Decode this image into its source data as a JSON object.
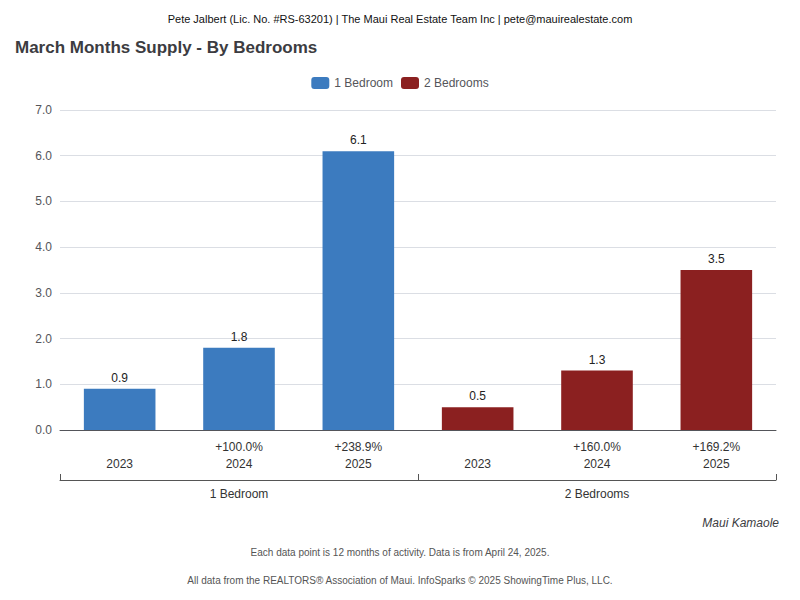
{
  "chart_data": {
    "type": "bar",
    "header": "Pete Jalbert (Lic. No. #RS-63201) | The Maui Real Estate Team Inc | pete@mauirealestate.com",
    "title": "March Months Supply - By Bedrooms",
    "categories": [
      "2023",
      "2024",
      "2025",
      "2023",
      "2024",
      "2025"
    ],
    "group_labels": [
      "1 Bedroom",
      "2 Bedrooms"
    ],
    "series": [
      {
        "name": "1 Bedroom",
        "color": "#3c7bbf",
        "values": [
          0.9,
          1.8,
          6.1,
          null,
          null,
          null
        ],
        "pct_changes": [
          null,
          "+100.0%",
          "+238.9%",
          null,
          null,
          null
        ]
      },
      {
        "name": "2 Bedrooms",
        "color": "#8b2020",
        "values": [
          null,
          null,
          null,
          0.5,
          1.3,
          3.5
        ],
        "pct_changes": [
          null,
          null,
          null,
          null,
          "+160.0%",
          "+169.2%"
        ]
      }
    ],
    "ylim": [
      0.0,
      7.0
    ],
    "yticks": [
      {
        "value": 0.0,
        "label": "0.0"
      },
      {
        "value": 1.0,
        "label": "1.0"
      },
      {
        "value": 2.0,
        "label": "2.0"
      },
      {
        "value": 3.0,
        "label": "3.0"
      },
      {
        "value": 4.0,
        "label": "4.0"
      },
      {
        "value": 5.0,
        "label": "5.0"
      },
      {
        "value": 6.0,
        "label": "6.0"
      },
      {
        "value": 7.0,
        "label": "7.0"
      }
    ],
    "grid": true,
    "legend": "top",
    "data_labels": true,
    "footnotes": [
      "Maui Kamaole",
      "Each data point is 12 months of activity. Data is from April 24, 2025.",
      "All data from the REALTORS® Association of Maui. InfoSparks © 2025 ShowingTime Plus, LLC."
    ]
  }
}
